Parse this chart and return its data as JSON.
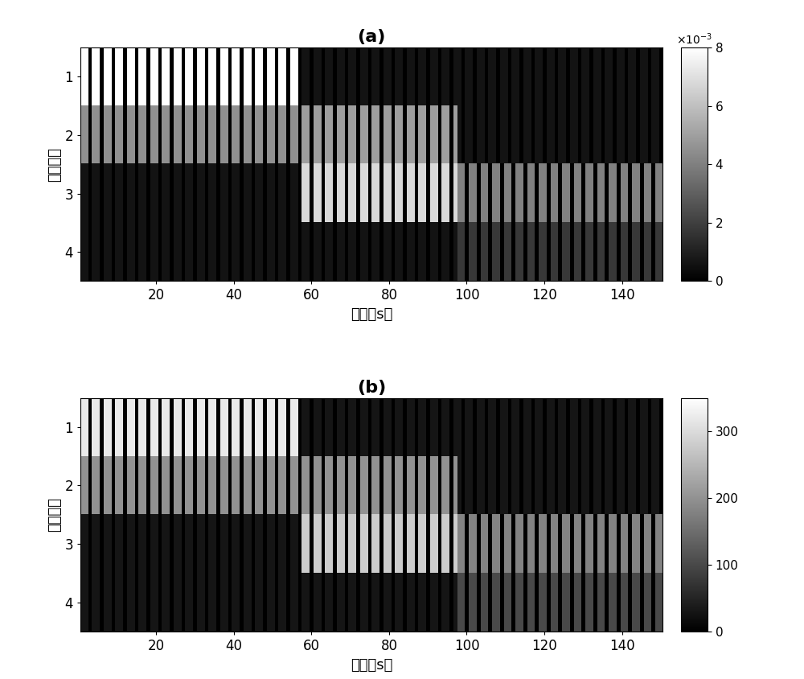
{
  "title_a": "(a)",
  "title_b": "(b)",
  "xlabel": "时间［s］",
  "ylabel": "雷达编号",
  "n_radars": 4,
  "n_steps": 150,
  "cbar_a_max": 0.008,
  "cbar_a_ticks": [
    0.0,
    0.002,
    0.004,
    0.006,
    0.008
  ],
  "cbar_a_ticklabels": [
    "0",
    "2",
    "4",
    "6",
    "8"
  ],
  "cbar_b_max": 350,
  "cbar_b_ticks": [
    0,
    100,
    200,
    300
  ],
  "cbar_b_ticklabels": [
    "0",
    "100",
    "200",
    "300"
  ],
  "xticks": [
    20,
    40,
    60,
    80,
    100,
    120,
    140
  ],
  "yticks": [
    1,
    2,
    3,
    4
  ],
  "phase1_end": 57,
  "phase2_end": 97,
  "bright_a": 0.008,
  "medium_a": 0.0045,
  "low_a": 0.0018,
  "dark_a": 0.0006,
  "bright_b": 320.0,
  "medium_b": 200.0,
  "low_b": 100.0,
  "dark_b": 30.0
}
